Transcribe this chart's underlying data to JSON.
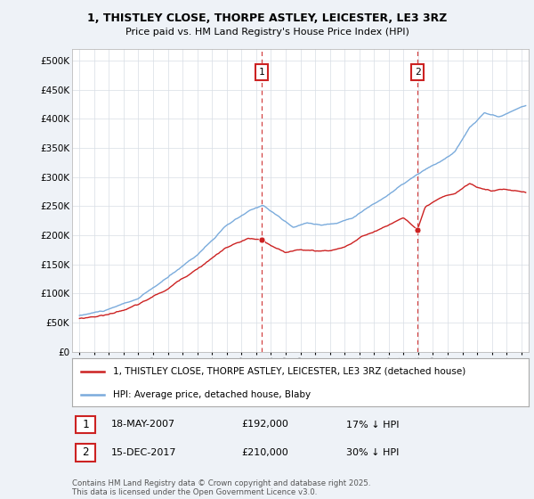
{
  "title1": "1, THISTLEY CLOSE, THORPE ASTLEY, LEICESTER, LE3 3RZ",
  "title2": "Price paid vs. HM Land Registry's House Price Index (HPI)",
  "ylabel_ticks": [
    "£0",
    "£50K",
    "£100K",
    "£150K",
    "£200K",
    "£250K",
    "£300K",
    "£350K",
    "£400K",
    "£450K",
    "£500K"
  ],
  "ytick_vals": [
    0,
    50000,
    100000,
    150000,
    200000,
    250000,
    300000,
    350000,
    400000,
    450000,
    500000
  ],
  "xlim": [
    1994.5,
    2025.5
  ],
  "ylim": [
    0,
    520000
  ],
  "hpi_color": "#7aabdc",
  "property_color": "#cc2222",
  "vline_color": "#cc2222",
  "marker1_year": 2007.38,
  "marker1_price": 192000,
  "marker1_label": "1",
  "marker2_year": 2017.96,
  "marker2_price": 210000,
  "marker2_label": "2",
  "legend_line1": "1, THISTLEY CLOSE, THORPE ASTLEY, LEICESTER, LE3 3RZ (detached house)",
  "legend_line2": "HPI: Average price, detached house, Blaby",
  "table_row1": [
    "1",
    "18-MAY-2007",
    "£192,000",
    "17% ↓ HPI"
  ],
  "table_row2": [
    "2",
    "15-DEC-2017",
    "£210,000",
    "30% ↓ HPI"
  ],
  "copyright": "Contains HM Land Registry data © Crown copyright and database right 2025.\nThis data is licensed under the Open Government Licence v3.0.",
  "bg_color": "#eef2f7",
  "plot_bg": "#ffffff"
}
